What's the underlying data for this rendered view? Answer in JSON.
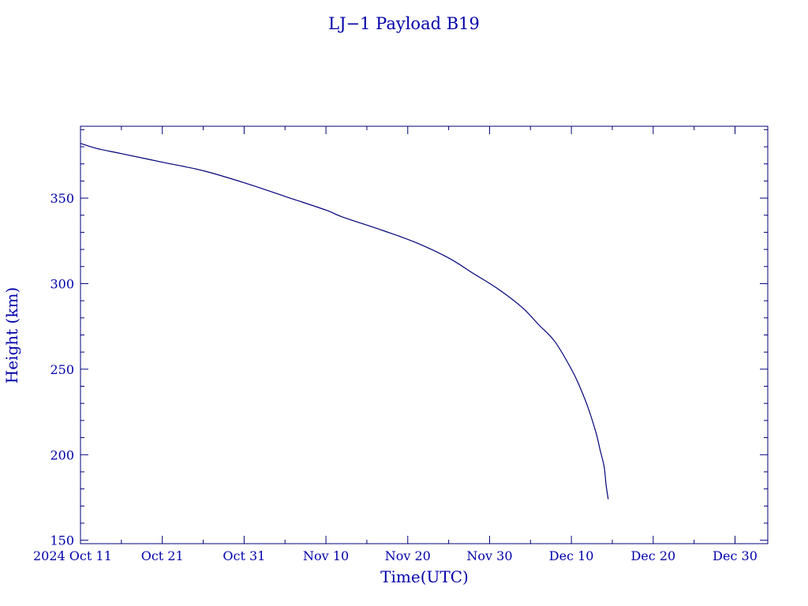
{
  "chart_data": {
    "type": "line",
    "title": "LJ−1 Payload B19",
    "xlabel": "Time(UTC)",
    "ylabel": "Height (km)",
    "x_range": [
      "2024-10-11",
      "2025-01-03"
    ],
    "ylim": [
      148,
      392
    ],
    "y_ticks": [
      150,
      200,
      250,
      300,
      350
    ],
    "y_tick_labels": [
      "150",
      "200",
      "250",
      "300",
      "350"
    ],
    "x_ticks": [
      "2024-10-11",
      "2024-10-21",
      "2024-10-31",
      "2024-11-10",
      "2024-11-20",
      "2024-11-30",
      "2024-12-10",
      "2024-12-20",
      "2024-12-30"
    ],
    "x_tick_labels": [
      "2024 Oct 11",
      "Oct 21",
      "Oct 31",
      "Nov 10",
      "Nov 20",
      "Nov 30",
      "Dec 10",
      "Dec 20",
      "Dec 30"
    ],
    "grid": false,
    "line_color": "#00007a",
    "text_color": "#0000aa",
    "series": [
      {
        "x": [
          "2024-10-11",
          "2024-10-13",
          "2024-10-16",
          "2024-10-21",
          "2024-10-26",
          "2024-10-31",
          "2024-11-05",
          "2024-11-10",
          "2024-11-12",
          "2024-11-17",
          "2024-11-21",
          "2024-11-25",
          "2024-11-28",
          "2024-12-01",
          "2024-12-04",
          "2024-12-06",
          "2024-12-08",
          "2024-12-10",
          "2024-12-11",
          "2024-12-12",
          "2024-12-13",
          "2024-12-13T12:00",
          "2024-12-14",
          "2024-12-14T06:00",
          "2024-12-14T12:00"
        ],
        "y": [
          382,
          379,
          376,
          371,
          366,
          359,
          351,
          343,
          339,
          331,
          324,
          315,
          306,
          297,
          286,
          276,
          266,
          250,
          240,
          228,
          213,
          203,
          193,
          182,
          174
        ]
      }
    ]
  }
}
